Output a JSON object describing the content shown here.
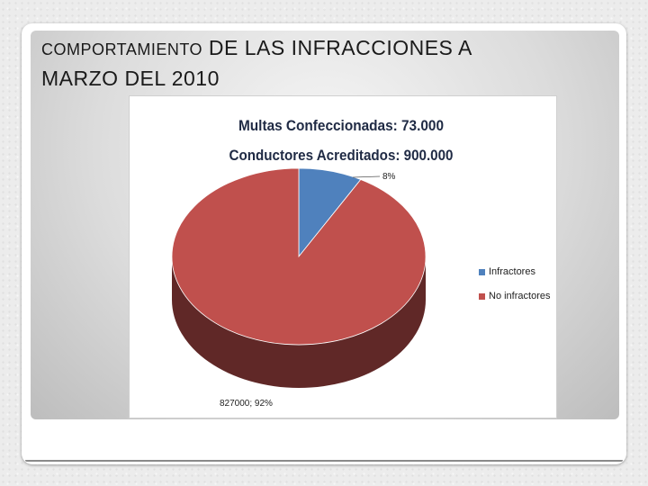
{
  "slide": {
    "title_part1": "COMPORTAMIENTO",
    "title_part2": " DE LAS INFRACCIONES A",
    "title_line2": "MARZO DEL 2010"
  },
  "chart_data": {
    "type": "pie",
    "title_lines": [
      "Multas Confeccionadas: 73.000",
      "Conductores Acreditados: 900.000"
    ],
    "series": [
      {
        "name": "Infractores",
        "value": 73000,
        "percent": 8,
        "color": "#4f81bd",
        "label": "8%"
      },
      {
        "name": "No infractores",
        "value": 827000,
        "percent": 92,
        "color": "#c0504d",
        "label": "827000; 92%"
      }
    ],
    "legend_position": "right",
    "style": "3d"
  }
}
